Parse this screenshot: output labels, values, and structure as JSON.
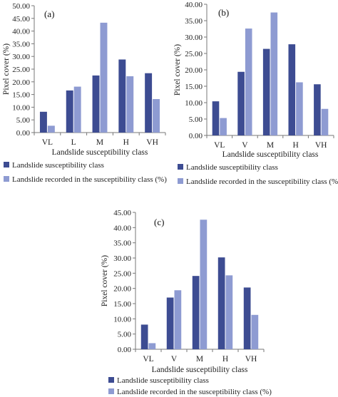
{
  "colors": {
    "series1": "#3d4c92",
    "series2": "#8e9bd2",
    "axis": "#777777"
  },
  "chart_data": [
    {
      "type": "bar",
      "panel_label": "(a)",
      "categories": [
        "VL",
        "L",
        "M",
        "H",
        "VH"
      ],
      "xlabel": "Landslide susceptibility class",
      "ylabel": "Pixel cover (%)",
      "ylim": [
        0,
        50
      ],
      "yticks": [
        "0.00",
        "5.00",
        "10.00",
        "15.00",
        "20.00",
        "25.00",
        "30.00",
        "35.00",
        "40.00",
        "45.00",
        "50.00"
      ],
      "legend_position": "bottom",
      "series": [
        {
          "name": "Landslide susceptibility class",
          "values": [
            8.2,
            16.6,
            22.5,
            28.8,
            23.4
          ]
        },
        {
          "name": "Landslide recorded in the susceptibility class (%)",
          "values": [
            2.7,
            18.1,
            43.3,
            22.2,
            13.2
          ]
        }
      ]
    },
    {
      "type": "bar",
      "panel_label": "(b)",
      "categories": [
        "VL",
        "V",
        "M",
        "H",
        "VH"
      ],
      "xlabel": "Landslide susceptibility class",
      "ylabel": "Pixel cover (%)",
      "ylim": [
        0,
        40
      ],
      "yticks": [
        "0.00",
        "5.00",
        "10.00",
        "15.00",
        "20.00",
        "25.00",
        "30.00",
        "35.00",
        "40.00"
      ],
      "legend_position": "bottom",
      "series": [
        {
          "name": "Landslide susceptibility class",
          "values": [
            10.4,
            19.4,
            26.4,
            27.8,
            15.6
          ]
        },
        {
          "name": "Landslide recorded in the susceptibility class (%)",
          "values": [
            5.3,
            32.6,
            37.5,
            16.2,
            8.1
          ]
        }
      ]
    },
    {
      "type": "bar",
      "panel_label": "(c)",
      "categories": [
        "VL",
        "V",
        "M",
        "H",
        "VH"
      ],
      "xlabel": "Landslide susceptibility class",
      "ylabel": "Pixel cover (%)",
      "ylim": [
        0,
        45
      ],
      "yticks": [
        "0.00",
        "5.00",
        "10.00",
        "15.00",
        "20.00",
        "25.00",
        "30.00",
        "35.00",
        "40.00",
        "45.00"
      ],
      "legend_position": "bottom",
      "series": [
        {
          "name": "Landslide susceptibility class",
          "values": [
            8.1,
            17.0,
            24.1,
            30.2,
            20.3
          ]
        },
        {
          "name": "Landslide recorded in the susceptibility class (%)",
          "values": [
            2.0,
            19.4,
            42.6,
            24.3,
            11.3
          ]
        }
      ]
    }
  ]
}
